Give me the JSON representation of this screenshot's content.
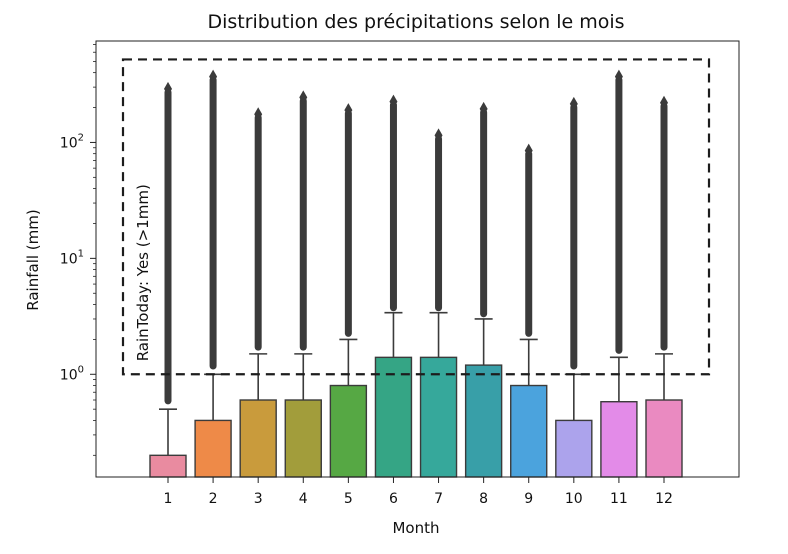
{
  "chart_data": {
    "type": "box",
    "title": "Distribution des précipitations selon le mois",
    "xlabel": "Month",
    "ylabel": "Rainfall (mm)",
    "yscale": "log",
    "ylim": [
      0.13,
      750
    ],
    "y_ticks": [
      {
        "value": 1,
        "base": "10",
        "exp": "0"
      },
      {
        "value": 10,
        "base": "10",
        "exp": "1"
      },
      {
        "value": 100,
        "base": "10",
        "exp": "2"
      }
    ],
    "categories": [
      "1",
      "2",
      "3",
      "4",
      "5",
      "6",
      "7",
      "8",
      "9",
      "10",
      "11",
      "12"
    ],
    "colors": [
      "#e98ba0",
      "#ee8a48",
      "#c99b3c",
      "#a29d3b",
      "#56a844",
      "#35a585",
      "#36a89b",
      "#389fa8",
      "#4ba3dd",
      "#aca3ec",
      "#e38be8",
      "#ea8ac1"
    ],
    "boxes": [
      {
        "month": "1",
        "q1": 0.0,
        "median": 0.0,
        "q3": 0.2,
        "whisker_high": 0.5,
        "flier_min": 0.55,
        "flier_max": 290
      },
      {
        "month": "2",
        "q1": 0.0,
        "median": 0.0,
        "q3": 0.4,
        "whisker_high": 1.0,
        "flier_min": 1.1,
        "flier_max": 370
      },
      {
        "month": "3",
        "q1": 0.0,
        "median": 0.0,
        "q3": 0.6,
        "whisker_high": 1.5,
        "flier_min": 1.6,
        "flier_max": 175
      },
      {
        "month": "4",
        "q1": 0.0,
        "median": 0.0,
        "q3": 0.6,
        "whisker_high": 1.5,
        "flier_min": 1.6,
        "flier_max": 245
      },
      {
        "month": "5",
        "q1": 0.0,
        "median": 0.0,
        "q3": 0.8,
        "whisker_high": 2.0,
        "flier_min": 2.1,
        "flier_max": 190
      },
      {
        "month": "6",
        "q1": 0.0,
        "median": 0.0,
        "q3": 1.4,
        "whisker_high": 3.4,
        "flier_min": 3.5,
        "flier_max": 225
      },
      {
        "month": "7",
        "q1": 0.0,
        "median": 0.0,
        "q3": 1.4,
        "whisker_high": 3.4,
        "flier_min": 3.5,
        "flier_max": 115
      },
      {
        "month": "8",
        "q1": 0.0,
        "median": 0.0,
        "q3": 1.2,
        "whisker_high": 3.0,
        "flier_min": 3.1,
        "flier_max": 195
      },
      {
        "month": "9",
        "q1": 0.0,
        "median": 0.0,
        "q3": 0.8,
        "whisker_high": 2.0,
        "flier_min": 2.1,
        "flier_max": 85
      },
      {
        "month": "10",
        "q1": 0.0,
        "median": 0.0,
        "q3": 0.4,
        "whisker_high": 1.0,
        "flier_min": 1.1,
        "flier_max": 215
      },
      {
        "month": "11",
        "q1": 0.0,
        "median": 0.0,
        "q3": 0.58,
        "whisker_high": 1.4,
        "flier_min": 1.5,
        "flier_max": 370
      },
      {
        "month": "12",
        "q1": 0.0,
        "median": 0.0,
        "q3": 0.6,
        "whisker_high": 1.5,
        "flier_min": 1.6,
        "flier_max": 220
      }
    ],
    "annotation": {
      "text": "RainToday: Yes (>1mm)",
      "y_range": [
        1,
        520
      ],
      "style": "dashed-box"
    }
  }
}
